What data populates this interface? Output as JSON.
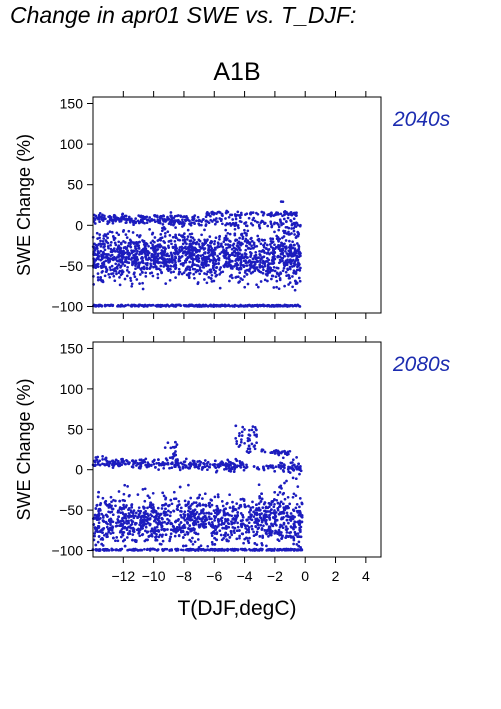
{
  "figure_title": "Change in apr01 SWE vs. T_DJF:",
  "chart_data": {
    "type": "scatter",
    "scenario": "A1B",
    "xlabel": "T(DJF,degC)",
    "ylabel": "SWE Change (%)",
    "xlim": [
      -14,
      5
    ],
    "ylim": [
      -108,
      158
    ],
    "x_ticks": [
      -12,
      -10,
      -8,
      -6,
      -4,
      -2,
      0,
      2,
      4
    ],
    "x_tick_labels": [
      "−12",
      "−10",
      "−8",
      "−6",
      "−4",
      "−2",
      "0",
      "2",
      "4"
    ],
    "y_ticks": [
      -100,
      -50,
      0,
      50,
      100,
      150
    ],
    "y_tick_labels": [
      "−100",
      "−50",
      "0",
      "50",
      "100",
      "150"
    ],
    "point_color": "#1c1cbe",
    "label_color": "#1c2cb0",
    "grid": false,
    "panels": [
      {
        "label": "2040s",
        "note": "dense point cloud, approx. bounds",
        "points_summary": {
          "x_range": [
            -14,
            -0.3
          ],
          "y_range": [
            -100,
            36
          ],
          "floor_value": -100,
          "plateau_value": 14,
          "plateau_x_range": [
            -6.5,
            -0.5
          ]
        }
      },
      {
        "label": "2080s",
        "note": "dense point cloud, approx. bounds",
        "points_summary": {
          "x_range": [
            -14,
            -0.2
          ],
          "y_range": [
            -100,
            55
          ],
          "floor_value": -100,
          "plateau_value": 22,
          "plateau_x_range": [
            -4,
            -1
          ]
        }
      }
    ]
  }
}
